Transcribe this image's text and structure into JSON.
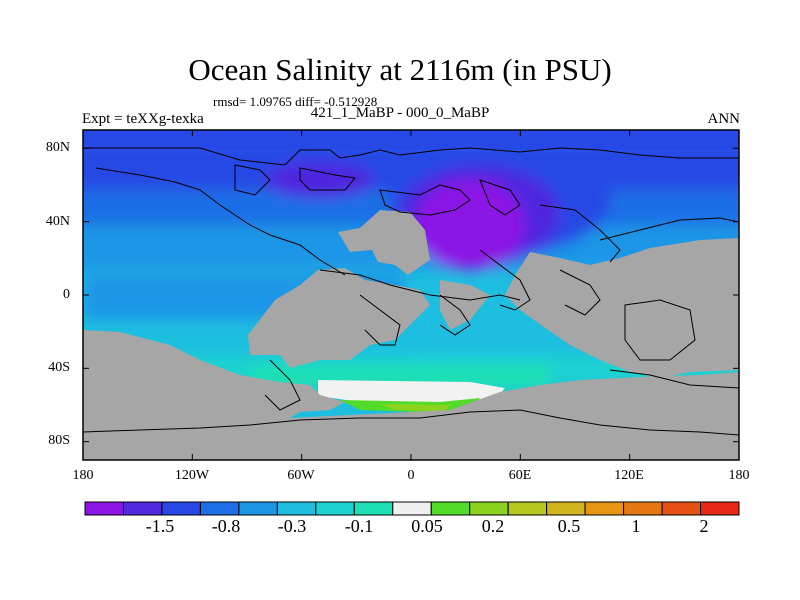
{
  "title": "Ocean Salinity at 2116m (in PSU)",
  "stats": "rmsd= 1.09765 diff= -0.512928",
  "left_string": "Expt = teXXg-texka",
  "center_string": "421_1_MaBP - 000_0_MaBP",
  "right_string": "ANN",
  "y_tick_labels": [
    "80N",
    "40N",
    "0",
    "40S",
    "80S"
  ],
  "x_tick_labels": [
    "180",
    "120W",
    "60W",
    "0",
    "60E",
    "120E",
    "180"
  ],
  "colorbar_labels": [
    "-1.5",
    "-0.8",
    "-0.3",
    "-0.1",
    "0.05",
    "0.2",
    "0.5",
    "1",
    "2"
  ],
  "colors": {
    "land": "#a6a6a6",
    "palette": [
      "#8c14e6",
      "#5028e0",
      "#2848e6",
      "#1e6ee6",
      "#1e96e6",
      "#1ebee0",
      "#1ed2d2",
      "#1ee0b4",
      "#f0f0f0",
      "#50dc28",
      "#8cd21e",
      "#b4c81e",
      "#d2b41e",
      "#e69614",
      "#e67814",
      "#e65014",
      "#e62814"
    ]
  },
  "chart_data": {
    "type": "heatmap",
    "title": "Ocean Salinity at 2116m (in PSU)",
    "xlabel": "",
    "ylabel": "",
    "xlim": [
      -180,
      180
    ],
    "ylim": [
      -90,
      90
    ],
    "x_ticks": [
      -180,
      -120,
      -60,
      0,
      60,
      120,
      180
    ],
    "y_ticks": [
      80,
      40,
      0,
      -40,
      -80
    ],
    "colorbar_levels": [
      -1.5,
      -0.8,
      -0.3,
      -0.1,
      0.05,
      0.2,
      0.5,
      1,
      2
    ],
    "grid": false
  }
}
